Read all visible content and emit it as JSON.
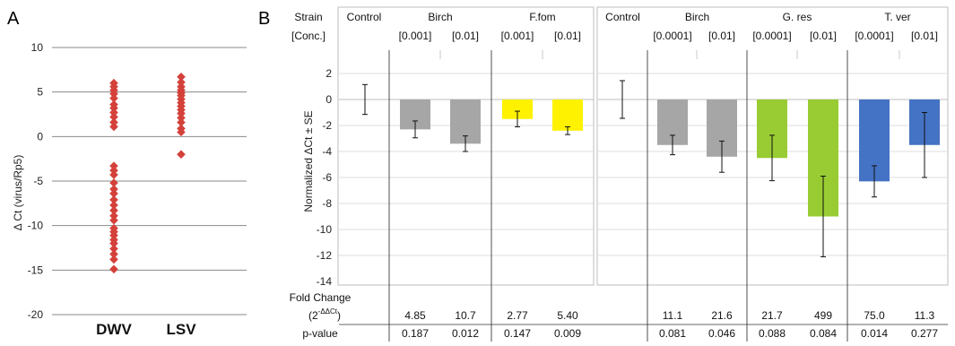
{
  "panel_a": {
    "letter": "A",
    "chart_data": {
      "type": "scatter",
      "ylabel": "Δ Ct (virus/Rp5)",
      "ylim": [
        -20,
        10
      ],
      "yticks": [
        10,
        5,
        0,
        -5,
        -10,
        -15,
        -20
      ],
      "categories": [
        "DWV",
        "LSV"
      ],
      "marker_color": "#d4403a",
      "grid": true,
      "series": [
        {
          "category": "DWV",
          "values": [
            6.0,
            5.6,
            5.2,
            4.8,
            4.3,
            3.6,
            3.2,
            2.7,
            2.2,
            1.6,
            1.1,
            -3.3,
            -3.8,
            -4.3,
            -5.2,
            -5.9,
            -6.4,
            -7.1,
            -7.7,
            -8.3,
            -8.9,
            -9.4,
            -10.3,
            -10.7,
            -11.1,
            -11.6,
            -12.0,
            -12.6,
            -13.2,
            -13.8,
            -14.9
          ]
        },
        {
          "category": "LSV",
          "values": [
            6.7,
            6.1,
            5.6,
            5.2,
            4.9,
            4.6,
            4.2,
            3.8,
            3.4,
            3.0,
            2.6,
            2.1,
            1.6,
            0.9,
            0.5,
            -2.0
          ]
        }
      ]
    }
  },
  "panel_b": {
    "letter": "B",
    "header_labels": {
      "strain": "Strain",
      "conc": "[Conc.]"
    },
    "table_labels": {
      "fold_change": "Fold Change",
      "fold_formula": "(2",
      "fold_formula_sup": "-ΔΔCt",
      "fold_formula_close": ")",
      "pvalue": "p-value"
    },
    "chart_data": {
      "type": "bar",
      "ylabel": "Normalized ΔCt ± SE",
      "ylim": [
        -14,
        2
      ],
      "yticks": [
        2,
        0,
        -2,
        -4,
        -6,
        -8,
        -10,
        -12,
        -14
      ],
      "groups": [
        {
          "name": "Control",
          "bars": [
            {
              "conc": "",
              "value": 0.0,
              "err": 1.15,
              "color": "",
              "fold": "",
              "p": ""
            }
          ]
        },
        {
          "name": "Birch",
          "bars": [
            {
              "conc": "[0.001]",
              "value": -2.3,
              "err": 0.65,
              "color": "#a6a6a6",
              "fold": "4.85",
              "p": "0.187"
            },
            {
              "conc": "[0.01]",
              "value": -3.4,
              "err": 0.6,
              "color": "#a6a6a6",
              "fold": "10.7",
              "p": "0.012"
            }
          ]
        },
        {
          "name": "F.fom",
          "bars": [
            {
              "conc": "[0.001]",
              "value": -1.5,
              "err": 0.6,
              "color": "#fff200",
              "fold": "2.77",
              "p": "0.147"
            },
            {
              "conc": "[0.01]",
              "value": -2.4,
              "err": 0.3,
              "color": "#fff200",
              "fold": "5.40",
              "p": "0.009"
            }
          ]
        },
        {
          "name": "Control",
          "bars": [
            {
              "conc": "",
              "value": 0.0,
              "err": 1.45,
              "color": "",
              "fold": "",
              "p": ""
            }
          ]
        },
        {
          "name": "Birch",
          "bars": [
            {
              "conc": "[0.0001]",
              "value": -3.5,
              "err": 0.75,
              "color": "#a6a6a6",
              "fold": "11.1",
              "p": "0.081"
            },
            {
              "conc": "[0.01]",
              "value": -4.4,
              "err": 1.2,
              "color": "#a6a6a6",
              "fold": "21.6",
              "p": "0.046"
            }
          ]
        },
        {
          "name": "G. res",
          "bars": [
            {
              "conc": "[0.0001]",
              "value": -4.5,
              "err": 1.75,
              "color": "#99cc33",
              "fold": "21.7",
              "p": "0.088"
            },
            {
              "conc": "[0.01]",
              "value": -9.0,
              "err": 3.1,
              "color": "#99cc33",
              "fold": "499",
              "p": "0.084"
            }
          ]
        },
        {
          "name": "T. ver",
          "bars": [
            {
              "conc": "[0.0001]",
              "value": -6.3,
              "err": 1.2,
              "color": "#4472c4",
              "fold": "75.0",
              "p": "0.014"
            },
            {
              "conc": "[0.01]",
              "value": -3.5,
              "err": 2.5,
              "color": "#4472c4",
              "fold": "11.3",
              "p": "0.277"
            }
          ]
        }
      ]
    }
  }
}
